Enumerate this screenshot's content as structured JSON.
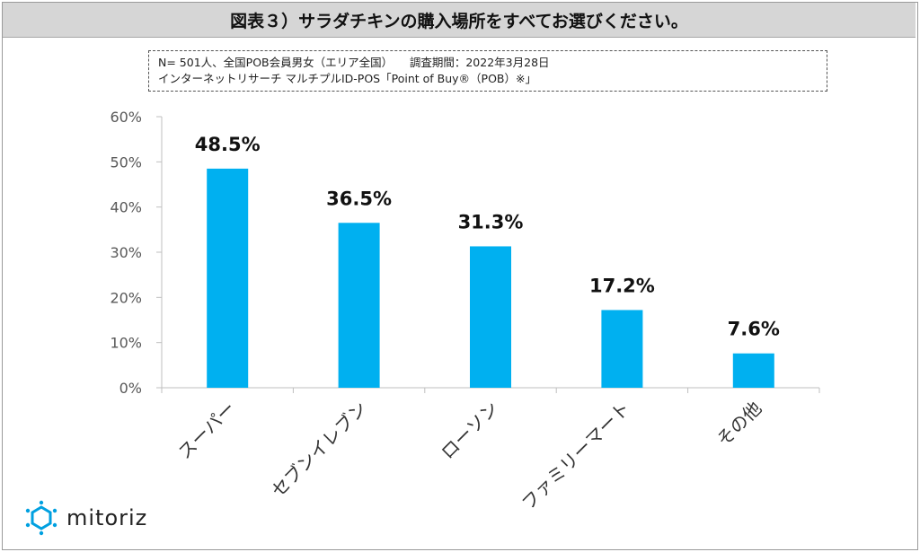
{
  "title": "図表３）サラダチキンの購入場所をすべてお選びください。",
  "note": {
    "line1": "N= 501人、全国POB会員男女（エリア全国）　　調査期間：2022年3月28日",
    "line2": "インターネットリサーチ マルチプルID-POS「Point of Buy®（POB）※」"
  },
  "logo": {
    "text": "mitoriz",
    "icon": "mitoriz-logo-mark"
  },
  "colors": {
    "bar": "#00b0f0",
    "axis": "#bfbfbf",
    "title_bg": "#d6d6d6"
  },
  "chart_data": {
    "type": "bar",
    "title": "",
    "xlabel": "",
    "ylabel": "",
    "categories": [
      "スーパー",
      "セブンイレブン",
      "ローソン",
      "ファミリーマート",
      "その他"
    ],
    "values": [
      48.5,
      36.5,
      31.3,
      17.2,
      7.6
    ],
    "data_labels": [
      "48.5%",
      "36.5%",
      "31.3%",
      "17.2%",
      "7.6%"
    ],
    "ylim": [
      0,
      60
    ],
    "yticks": [
      0,
      10,
      20,
      30,
      40,
      50,
      60
    ],
    "ytick_labels": [
      "0%",
      "10%",
      "20%",
      "30%",
      "40%",
      "50%",
      "60%"
    ],
    "grid": false,
    "legend": "none"
  }
}
